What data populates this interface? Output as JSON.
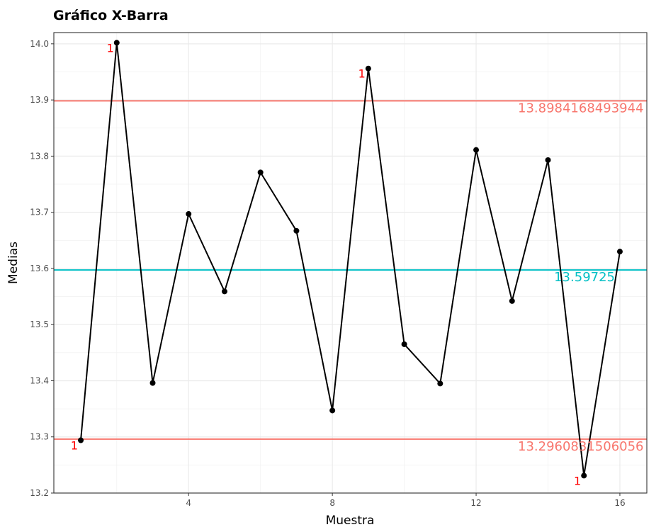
{
  "chart_data": {
    "type": "line",
    "title": "Gráfico X-Barra",
    "xlabel": "Muestra",
    "ylabel": "Medias",
    "xlim": [
      0.25,
      16.75
    ],
    "ylim": [
      13.2,
      14.02
    ],
    "x_ticks": [
      4,
      8,
      12,
      16
    ],
    "y_ticks": [
      13.2,
      13.3,
      13.4,
      13.5,
      13.6,
      13.7,
      13.8,
      13.9,
      14.0
    ],
    "grid": true,
    "series": [
      {
        "x": [
          1,
          2,
          3,
          4,
          5,
          6,
          7,
          8,
          9,
          10,
          11,
          12,
          13,
          14,
          15,
          16
        ],
        "values": [
          13.294,
          14.002,
          13.396,
          13.697,
          13.559,
          13.771,
          13.667,
          13.347,
          13.956,
          13.465,
          13.395,
          13.811,
          13.542,
          13.793,
          13.231,
          13.63
        ]
      }
    ],
    "reference_lines": [
      {
        "role": "ucl",
        "value": 13.8984168493944,
        "label": "13.8984168493944",
        "color": "#f8766d"
      },
      {
        "role": "center",
        "value": 13.59725,
        "label": "13.59725",
        "color": "#00bfc4"
      },
      {
        "role": "lcl",
        "value": 13.2960831506056,
        "label": "13.2960831506056",
        "color": "#f8766d"
      }
    ],
    "flagged_points": [
      {
        "x": 1,
        "label": "1"
      },
      {
        "x": 2,
        "label": "1"
      },
      {
        "x": 9,
        "label": "1"
      },
      {
        "x": 15,
        "label": "1"
      }
    ],
    "colors": {
      "line": "#000000",
      "flag": "#ff0000",
      "grid": "#ebebeb",
      "panel_border": "#333333"
    }
  }
}
